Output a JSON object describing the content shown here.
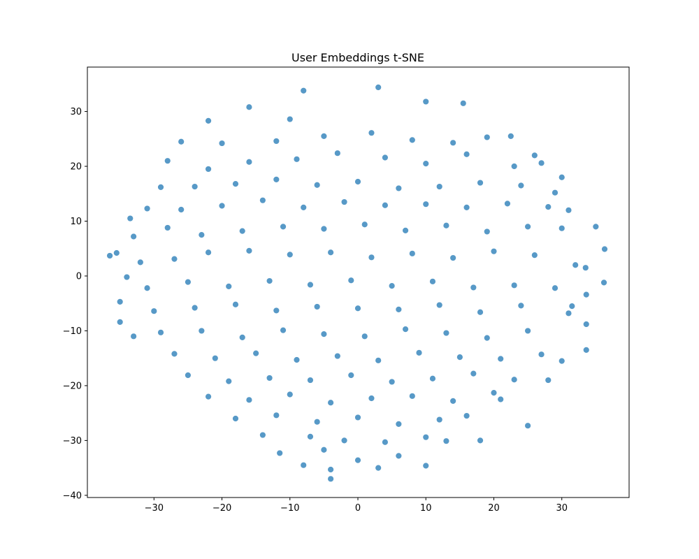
{
  "chart_data": {
    "type": "scatter",
    "title": "User Embeddings t-SNE",
    "color": "#1f77b4",
    "xlim": [
      -39.8,
      39.9
    ],
    "ylim": [
      -40.4,
      38.1
    ],
    "xticks": [
      {
        "value": -30,
        "label": "−30"
      },
      {
        "value": -20,
        "label": "−20"
      },
      {
        "value": -10,
        "label": "−10"
      },
      0,
      10,
      20,
      30
    ],
    "yticks": [
      {
        "value": -40,
        "label": "−40"
      },
      {
        "value": -30,
        "label": "−30"
      },
      {
        "value": -20,
        "label": "−20"
      },
      {
        "value": -10,
        "label": "−10"
      },
      0,
      10,
      20,
      30
    ],
    "x": [
      -36.5,
      -35.5,
      -34,
      -33.5,
      -35,
      -35,
      -33,
      3,
      -8,
      -4,
      36.3,
      36.2,
      35,
      33.6,
      33.6,
      33.6,
      25,
      18,
      10,
      3,
      -4,
      -8,
      -11.5,
      -26,
      -22,
      -16,
      -10,
      10,
      15.5,
      22.5,
      26,
      30,
      31,
      33.5,
      31.5,
      30,
      28,
      21,
      10,
      -20,
      -12,
      -5,
      2,
      8,
      14,
      19,
      -28,
      -22,
      -16,
      -9,
      -3,
      4,
      10,
      16,
      23,
      27,
      -29,
      -24,
      -18,
      -12,
      -6,
      0,
      6,
      12,
      18,
      24,
      29,
      -31,
      -26,
      -20,
      -14,
      -8,
      -2,
      4,
      10,
      16,
      22,
      28,
      -33,
      -28,
      -23,
      -17,
      -11,
      -5,
      1,
      7,
      13,
      19,
      25,
      30,
      -32,
      -27,
      -22,
      -16,
      -10,
      -4,
      2,
      8,
      14,
      20,
      26,
      32,
      -31,
      -25,
      -19,
      -13,
      -7,
      -1,
      5,
      11,
      17,
      23,
      29,
      -30,
      -24,
      -18,
      -12,
      -6,
      0,
      6,
      12,
      18,
      24,
      31,
      -29,
      -23,
      -17,
      -11,
      -5,
      1,
      7,
      13,
      19,
      25,
      -27,
      -21,
      -15,
      -9,
      -3,
      3,
      9,
      15,
      21,
      27,
      -25,
      -19,
      -13,
      -7,
      -1,
      5,
      11,
      17,
      23,
      -22,
      -16,
      -10,
      -4,
      2,
      8,
      14,
      20,
      -18,
      -12,
      -6,
      0,
      6,
      12,
      16,
      -14,
      -7,
      -2,
      4,
      13,
      -5,
      0,
      6
    ],
    "y": [
      3.7,
      4.2,
      -0.2,
      10.5,
      -4.7,
      -8.4,
      -11,
      34.4,
      33.8,
      -37,
      4.9,
      -1.2,
      9,
      -13.5,
      -8.8,
      -3.4,
      -27.3,
      -30,
      -34.6,
      -35,
      -35.3,
      -34.5,
      -32.3,
      24.5,
      28.3,
      30.8,
      28.6,
      31.8,
      31.5,
      25.5,
      22,
      18,
      12,
      1.5,
      -5.5,
      -15.5,
      -19,
      -22.5,
      -29.4,
      24.2,
      24.6,
      25.5,
      26.1,
      24.8,
      24.3,
      25.3,
      21,
      19.5,
      20.8,
      21.3,
      22.4,
      21.6,
      20.5,
      22.2,
      20,
      20.6,
      16.2,
      16.3,
      16.8,
      17.6,
      16.6,
      17.2,
      16,
      16.3,
      17,
      16.5,
      15.2,
      12.3,
      12.1,
      12.8,
      13.8,
      12.5,
      13.5,
      12.9,
      13.1,
      12.5,
      13.2,
      12.6,
      7.2,
      8.8,
      7.5,
      8.2,
      9,
      8.6,
      9.4,
      8.3,
      9.2,
      8.1,
      9,
      8.7,
      2.5,
      3.1,
      4.3,
      4.6,
      3.9,
      4.3,
      3.4,
      4.1,
      3.3,
      4.5,
      3.8,
      2,
      -2.2,
      -1.1,
      -1.9,
      -0.9,
      -1.6,
      -0.8,
      -1.8,
      -1,
      -2.1,
      -1.7,
      -2.2,
      -6.4,
      -5.8,
      -5.2,
      -6.3,
      -5.6,
      -5.9,
      -6.1,
      -5.3,
      -6.6,
      -5.4,
      -6.8,
      -10.3,
      -10,
      -11.2,
      -9.9,
      -10.6,
      -11,
      -9.7,
      -10.4,
      -11.3,
      -10,
      -14.2,
      -15,
      -14.1,
      -15.3,
      -14.6,
      -15.4,
      -14,
      -14.8,
      -15.1,
      -14.3,
      -18.1,
      -19.2,
      -18.6,
      -19,
      -18.1,
      -19.3,
      -18.7,
      -17.8,
      -18.9,
      -22,
      -22.6,
      -21.6,
      -23.1,
      -22.3,
      -21.9,
      -22.8,
      -21.3,
      -26,
      -25.4,
      -26.6,
      -25.8,
      -27,
      -26.2,
      -25.5,
      -29,
      -29.3,
      -30,
      -30.3,
      -30.1,
      -31.7,
      -33.6,
      -32.8
    ]
  }
}
